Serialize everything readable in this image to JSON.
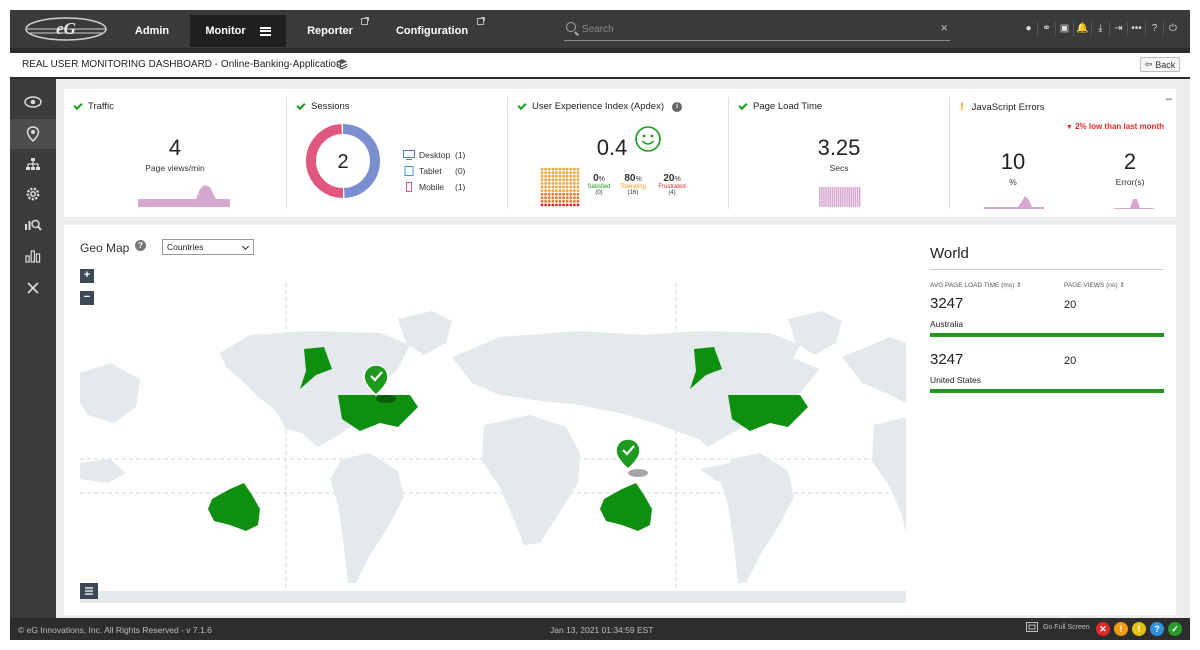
{
  "nav": {
    "admin": "Admin",
    "monitor": "Monitor",
    "reporter": "Reporter",
    "configuration": "Configuration"
  },
  "search": {
    "placeholder": "Search",
    "clear": "×"
  },
  "top_icons": [
    "user-icon",
    "link-icon",
    "image-icon",
    "bell-icon",
    "download-icon",
    "logout-icon",
    "more-icon",
    "help-icon",
    "power-icon"
  ],
  "top_icon_glyphs": [
    "●",
    "⚭",
    "▣",
    "🔔",
    "⤓",
    "⇥",
    "•••",
    "?",
    "⏻"
  ],
  "page": {
    "title": "REAL USER MONITORING DASHBOARD - Online-Banking-Application",
    "back": "Back"
  },
  "kpis": {
    "traffic": {
      "title": "Traffic",
      "value": "4",
      "unit": "Page views/min"
    },
    "sessions": {
      "title": "Sessions",
      "value": "2",
      "devices": [
        {
          "label": "Desktop",
          "count": "(1)"
        },
        {
          "label": "Tablet",
          "count": "(0)"
        },
        {
          "label": "Mobile",
          "count": "(1)"
        }
      ],
      "share_desktop": 0.5,
      "share_mobile": 0.5
    },
    "apdex": {
      "title": "User Experience Index (Apdex)",
      "value": "0.4",
      "satisfied_pct": "0",
      "tolerating_pct": "80",
      "frustrated_pct": "20",
      "pct_suffix": "%",
      "satisfied_label": "Satisfied",
      "tolerating_label": "Tolerating",
      "frustrated_label": "Frustrated",
      "satisfied_count": "(0)",
      "tolerating_count": "(16)",
      "frustrated_count": "(4)"
    },
    "page_load": {
      "title": "Page Load Time",
      "value": "3.25",
      "unit": "Secs"
    },
    "js_errors": {
      "title": "JavaScript Errors",
      "trend": "2% low than last month",
      "pct_value": "10",
      "pct_unit": "%",
      "errors_value": "2",
      "errors_unit": "Error(s)"
    }
  },
  "geo": {
    "title": "Geo Map",
    "help": "?",
    "select_value": "Countries",
    "zoom_in": "+",
    "zoom_out": "−"
  },
  "world": {
    "title": "World",
    "col_load": "AVG PAGE LOAD TIME (ms)",
    "col_views": "PAGE VIEWS (no)",
    "rows": [
      {
        "load": "3247",
        "views": "20",
        "country": "Australia"
      },
      {
        "load": "3247",
        "views": "20",
        "country": "United States"
      }
    ]
  },
  "footer": {
    "copyright": "© eG Innovations, Inc. All Rights Reserved - v 7.1.6",
    "clock": "Jan 13, 2021 01:34:59 EST",
    "fullscreen": "Go Full Screen",
    "alarms": [
      {
        "glyph": "✕",
        "color": "#e02a2a"
      },
      {
        "glyph": "!",
        "color": "#f19a13"
      },
      {
        "glyph": "!",
        "color": "#e3c013"
      },
      {
        "glyph": "?",
        "color": "#2f8fe0"
      },
      {
        "glyph": "✓",
        "color": "#2a9a2a"
      }
    ]
  },
  "colors": {
    "ok_green": "#1a9a1a",
    "map_green": "#0f8f0f",
    "land": "#e4e9ec",
    "spark": "#d6a8d0",
    "desktop": "#7b8fd0",
    "mobile": "#e0587f",
    "alert_red": "#e02a2a",
    "warn_orange": "#f19a13"
  }
}
